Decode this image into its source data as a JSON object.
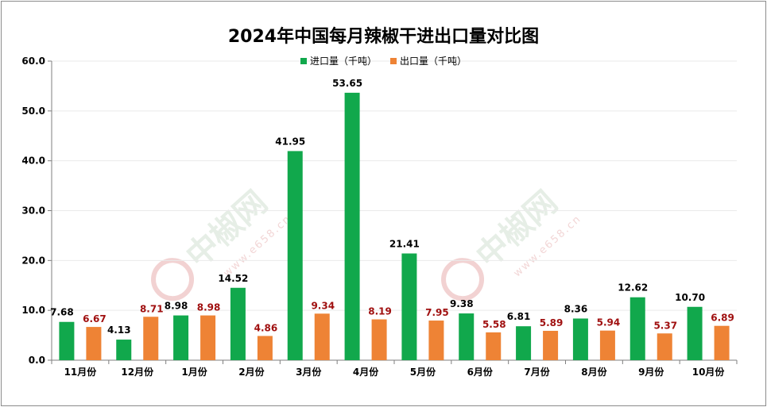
{
  "chart_data": {
    "type": "bar",
    "title": "2024年中国每月辣椒干进出口量对比图",
    "categories": [
      "11月份",
      "12月份",
      "1月份",
      "2月份",
      "3月份",
      "4月份",
      "5月份",
      "6月份",
      "7月份",
      "8月份",
      "9月份",
      "10月份"
    ],
    "series": [
      {
        "name": "进口量（千吨）",
        "color": "#11a84c",
        "label_color": "#000000",
        "values": [
          7.68,
          4.13,
          8.98,
          14.52,
          41.95,
          53.65,
          21.41,
          9.38,
          6.81,
          8.36,
          12.62,
          10.7
        ],
        "labels": [
          "7.68",
          "4.13",
          "8.98",
          "14.52",
          "41.95",
          "53.65",
          "21.41",
          "9.38",
          "6.81",
          "8.36",
          "12.62",
          "10.70"
        ]
      },
      {
        "name": "出口量（千吨）",
        "color": "#ee8335",
        "label_color": "#a01010",
        "values": [
          6.67,
          8.71,
          8.98,
          4.86,
          9.34,
          8.19,
          7.95,
          5.58,
          5.89,
          5.94,
          5.37,
          6.89
        ],
        "labels": [
          "6.67",
          "8.71",
          "8.98",
          "4.86",
          "9.34",
          "8.19",
          "7.95",
          "5.58",
          "5.89",
          "5.94",
          "5.37",
          "6.89"
        ]
      }
    ],
    "ylim": [
      0,
      60
    ],
    "yticks": [
      "0.0",
      "10.0",
      "20.0",
      "30.0",
      "40.0",
      "50.0",
      "60.0"
    ],
    "grid": true,
    "legend_position": "top-center"
  },
  "watermark": {
    "logo_text": "中椒网",
    "url_text": "www.e658.cn"
  }
}
